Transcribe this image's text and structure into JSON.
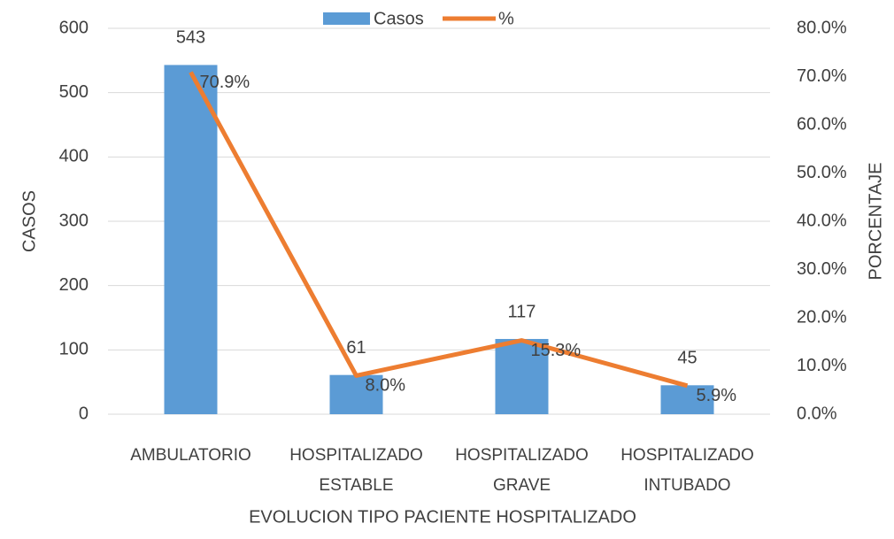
{
  "chart_data": {
    "type": "bar_line",
    "categories": [
      "AMBULATORIO",
      "HOSPITALIZADO ESTABLE",
      "HOSPITALIZADO GRAVE",
      "HOSPITALIZADO INTUBADO"
    ],
    "series": [
      {
        "name": "Casos",
        "type": "bar",
        "color": "#5b9bd5",
        "values": [
          543,
          61,
          117,
          45
        ]
      },
      {
        "name": "%",
        "type": "line",
        "axis": "y2",
        "color": "#ed7d31",
        "values": [
          70.9,
          8.0,
          15.3,
          5.9
        ],
        "value_labels": [
          "70.9%",
          "8.0%",
          "15.3%",
          "5.9%"
        ]
      }
    ],
    "xlabel": "EVOLUCION TIPO PACIENTE HOSPITALIZADO",
    "ylabel": "CASOS",
    "y2label": "PORCENTAJE",
    "ylim": [
      0,
      600
    ],
    "yticks": [
      0,
      100,
      200,
      300,
      400,
      500,
      600
    ],
    "y2lim": [
      0,
      80
    ],
    "y2ticks": [
      {
        "value": 0,
        "label": "0.0%"
      },
      {
        "value": 10,
        "label": "10.0%"
      },
      {
        "value": 20,
        "label": "20.0%"
      },
      {
        "value": 30,
        "label": "30.0%"
      },
      {
        "value": 40,
        "label": "40.0%"
      },
      {
        "value": 50,
        "label": "50.0%"
      },
      {
        "value": 60,
        "label": "60.0%"
      },
      {
        "value": 70,
        "label": "70.0%"
      },
      {
        "value": 80,
        "label": "80.0%"
      }
    ],
    "grid": true,
    "legend": "top"
  }
}
